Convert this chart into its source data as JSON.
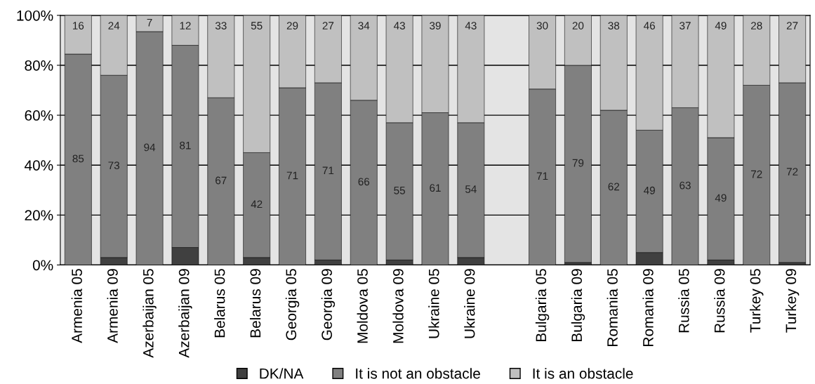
{
  "chart_data": {
    "type": "bar",
    "stacked": true,
    "categories": [
      "Armenia 05",
      "Armenia 09",
      "Azerbaijan 05",
      "Azerbaijan 09",
      "Belarus 05",
      "Belarus 09",
      "Georgia 05",
      "Georgia 09",
      "Moldova 05",
      "Moldova 09",
      "Ukraine 05",
      "Ukraine 09",
      null,
      "Bulgaria 05",
      "Bulgaria 09",
      "Romania 05",
      "Romania 09",
      "Russia 05",
      "Russia 09",
      "Turkey 05",
      "Turkey 09"
    ],
    "series": [
      {
        "name": "DK/NA",
        "color": "#404040",
        "values": [
          0,
          3,
          0,
          7,
          0,
          3,
          0,
          2,
          0,
          2,
          0,
          3,
          null,
          0,
          1,
          0,
          5,
          0,
          2,
          0,
          1
        ]
      },
      {
        "name": "It is not an obstacle",
        "color": "#808080",
        "values": [
          84.5,
          73,
          93.5,
          81,
          67,
          42,
          71,
          71,
          66,
          55,
          61,
          54,
          null,
          70.5,
          79,
          62,
          49,
          63,
          49,
          72,
          72
        ],
        "value_labels": [
          "85",
          "73",
          "94",
          "81",
          "67",
          "42",
          "71",
          "71",
          "66",
          "55",
          "61",
          "54",
          null,
          "71",
          "79",
          "62",
          "49",
          "63",
          "49",
          "72",
          "72"
        ]
      },
      {
        "name": "It is an obstacle",
        "color": "#c0c0c0",
        "values": [
          15.5,
          24,
          6.5,
          12,
          33,
          55,
          29,
          27,
          34,
          43,
          39,
          43,
          null,
          29.5,
          20,
          38,
          46,
          37,
          49,
          28,
          27
        ],
        "value_labels": [
          "16",
          "24",
          "7",
          "12",
          "33",
          "55",
          "29",
          "27",
          "34",
          "43",
          "39",
          "43",
          null,
          "30",
          "20",
          "38",
          "46",
          "37",
          "49",
          "28",
          "27"
        ]
      }
    ],
    "ylim": [
      0,
      100
    ],
    "yticks": [
      {
        "value": 0,
        "label": "0%"
      },
      {
        "value": 20,
        "label": "20%"
      },
      {
        "value": 40,
        "label": "40%"
      },
      {
        "value": 60,
        "label": "60%"
      },
      {
        "value": 80,
        "label": "80%"
      },
      {
        "value": 100,
        "label": "100%"
      }
    ],
    "grid": "y",
    "legend": "bottom"
  }
}
